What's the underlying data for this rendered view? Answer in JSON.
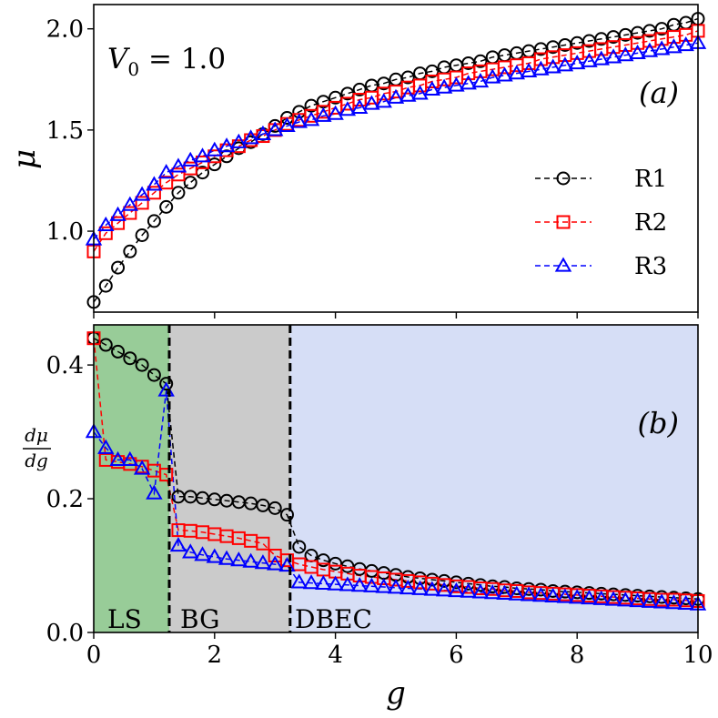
{
  "chart_data": [
    {
      "panel": "a",
      "type": "line",
      "panel_label": "(a)",
      "annotation": "V_0 = 1.0",
      "annotation_parts": {
        "main": "V",
        "sub": "0",
        "rest": " = 1.0"
      },
      "xlabel": "",
      "ylabel": "μ",
      "xlim": [
        0,
        10
      ],
      "ylim": [
        0.6,
        2.12
      ],
      "yticks": [
        "1.0",
        "1.5",
        "2.0"
      ],
      "ytick_values": [
        1.0,
        1.5,
        2.0
      ],
      "legend_position": "right",
      "series": [
        {
          "name": "R1",
          "color": "#000000",
          "marker": "circle",
          "x": [
            0.0,
            0.2,
            0.4,
            0.6,
            0.8,
            1.0,
            1.2,
            1.4,
            1.6,
            1.8,
            2.0,
            2.2,
            2.4,
            2.6,
            2.8,
            3.0,
            3.2,
            3.4,
            3.6,
            3.8,
            4.0,
            4.2,
            4.4,
            4.6,
            4.8,
            5.0,
            5.2,
            5.4,
            5.6,
            5.8,
            6.0,
            6.2,
            6.4,
            6.6,
            6.8,
            7.0,
            7.2,
            7.4,
            7.6,
            7.8,
            8.0,
            8.2,
            8.4,
            8.6,
            8.8,
            9.0,
            9.2,
            9.4,
            9.6,
            9.8,
            10.0
          ],
          "values": [
            0.65,
            0.73,
            0.82,
            0.9,
            0.98,
            1.05,
            1.12,
            1.19,
            1.24,
            1.29,
            1.33,
            1.37,
            1.41,
            1.44,
            1.48,
            1.52,
            1.56,
            1.59,
            1.62,
            1.64,
            1.66,
            1.68,
            1.7,
            1.72,
            1.73,
            1.75,
            1.76,
            1.78,
            1.79,
            1.81,
            1.82,
            1.83,
            1.84,
            1.86,
            1.87,
            1.88,
            1.89,
            1.9,
            1.91,
            1.92,
            1.93,
            1.94,
            1.95,
            1.96,
            1.97,
            1.98,
            1.99,
            2.0,
            2.02,
            2.03,
            2.05
          ]
        },
        {
          "name": "R2",
          "color": "#ff0000",
          "marker": "square",
          "x": [
            0.0,
            0.2,
            0.4,
            0.6,
            0.8,
            1.0,
            1.2,
            1.4,
            1.6,
            1.8,
            2.0,
            2.2,
            2.4,
            2.6,
            2.8,
            3.0,
            3.2,
            3.4,
            3.6,
            3.8,
            4.0,
            4.2,
            4.4,
            4.6,
            4.8,
            5.0,
            5.2,
            5.4,
            5.6,
            5.8,
            6.0,
            6.2,
            6.4,
            6.6,
            6.8,
            7.0,
            7.2,
            7.4,
            7.6,
            7.8,
            8.0,
            8.2,
            8.4,
            8.6,
            8.8,
            9.0,
            9.2,
            9.4,
            9.6,
            9.8,
            10.0
          ],
          "values": [
            0.9,
            0.99,
            1.04,
            1.09,
            1.14,
            1.19,
            1.24,
            1.28,
            1.31,
            1.34,
            1.37,
            1.4,
            1.42,
            1.45,
            1.47,
            1.5,
            1.53,
            1.55,
            1.57,
            1.59,
            1.61,
            1.63,
            1.65,
            1.66,
            1.68,
            1.69,
            1.71,
            1.72,
            1.74,
            1.75,
            1.76,
            1.78,
            1.79,
            1.8,
            1.81,
            1.82,
            1.83,
            1.85,
            1.86,
            1.87,
            1.88,
            1.89,
            1.9,
            1.91,
            1.92,
            1.93,
            1.94,
            1.95,
            1.96,
            1.97,
            1.99
          ]
        },
        {
          "name": "R3",
          "color": "#0000ff",
          "marker": "triangle",
          "x": [
            0.0,
            0.2,
            0.4,
            0.6,
            0.8,
            1.0,
            1.2,
            1.4,
            1.6,
            1.8,
            2.0,
            2.2,
            2.4,
            2.6,
            2.8,
            3.0,
            3.2,
            3.4,
            3.6,
            3.8,
            4.0,
            4.2,
            4.4,
            4.6,
            4.8,
            5.0,
            5.2,
            5.4,
            5.6,
            5.8,
            6.0,
            6.2,
            6.4,
            6.6,
            6.8,
            7.0,
            7.2,
            7.4,
            7.6,
            7.8,
            8.0,
            8.2,
            8.4,
            8.6,
            8.8,
            9.0,
            9.2,
            9.4,
            9.6,
            9.8,
            10.0
          ],
          "values": [
            0.96,
            1.03,
            1.08,
            1.13,
            1.18,
            1.23,
            1.29,
            1.32,
            1.35,
            1.37,
            1.4,
            1.42,
            1.44,
            1.46,
            1.48,
            1.5,
            1.52,
            1.54,
            1.55,
            1.57,
            1.58,
            1.6,
            1.61,
            1.63,
            1.64,
            1.66,
            1.67,
            1.68,
            1.7,
            1.71,
            1.72,
            1.73,
            1.74,
            1.76,
            1.77,
            1.78,
            1.79,
            1.8,
            1.81,
            1.82,
            1.83,
            1.84,
            1.85,
            1.86,
            1.87,
            1.88,
            1.89,
            1.9,
            1.91,
            1.92,
            1.93
          ]
        }
      ]
    },
    {
      "panel": "b",
      "type": "line",
      "panel_label": "(b)",
      "xlabel": "g",
      "ylabel": "dμ/dg",
      "ylabel_parts": {
        "num": "dμ",
        "den": "dg"
      },
      "xlim": [
        0,
        10
      ],
      "ylim": [
        0.0,
        0.46
      ],
      "xticks": [
        "0",
        "2",
        "4",
        "6",
        "8",
        "10"
      ],
      "xtick_values": [
        0,
        2,
        4,
        6,
        8,
        10
      ],
      "yticks": [
        "0.0",
        "0.2",
        "0.4"
      ],
      "ytick_values": [
        0.0,
        0.2,
        0.4
      ],
      "regions": [
        {
          "label": "LS",
          "x0": 0,
          "x1": 1.25,
          "color": "#98cc98"
        },
        {
          "label": "BG",
          "x0": 1.25,
          "x1": 3.25,
          "color": "#cbcbcb"
        },
        {
          "label": "DBEC",
          "x0": 3.25,
          "x1": 10,
          "color": "#d6def6"
        }
      ],
      "boundaries": [
        1.25,
        3.25
      ],
      "series": [
        {
          "name": "R1",
          "color": "#000000",
          "marker": "circle",
          "x": [
            0.0,
            0.2,
            0.4,
            0.6,
            0.8,
            1.0,
            1.2,
            1.4,
            1.6,
            1.8,
            2.0,
            2.2,
            2.4,
            2.6,
            2.8,
            3.0,
            3.2,
            3.4,
            3.6,
            3.8,
            4.0,
            4.2,
            4.4,
            4.6,
            4.8,
            5.0,
            5.2,
            5.4,
            5.6,
            5.8,
            6.0,
            6.2,
            6.4,
            6.6,
            6.8,
            7.0,
            7.2,
            7.4,
            7.6,
            7.8,
            8.0,
            8.2,
            8.4,
            8.6,
            8.8,
            9.0,
            9.2,
            9.4,
            9.6,
            9.8,
            10.0
          ],
          "values": [
            0.44,
            0.43,
            0.42,
            0.41,
            0.4,
            0.385,
            0.372,
            0.203,
            0.203,
            0.201,
            0.199,
            0.197,
            0.195,
            0.193,
            0.19,
            0.186,
            0.176,
            0.128,
            0.115,
            0.108,
            0.103,
            0.099,
            0.095,
            0.092,
            0.089,
            0.086,
            0.083,
            0.081,
            0.079,
            0.077,
            0.075,
            0.073,
            0.071,
            0.069,
            0.068,
            0.066,
            0.065,
            0.064,
            0.062,
            0.061,
            0.06,
            0.059,
            0.058,
            0.057,
            0.056,
            0.055,
            0.054,
            0.053,
            0.052,
            0.051,
            0.05
          ]
        },
        {
          "name": "R2",
          "color": "#ff0000",
          "marker": "square",
          "x": [
            0.0,
            0.2,
            0.4,
            0.6,
            0.8,
            1.0,
            1.2,
            1.4,
            1.6,
            1.8,
            2.0,
            2.2,
            2.4,
            2.6,
            2.8,
            3.0,
            3.2,
            3.4,
            3.6,
            3.8,
            4.0,
            4.2,
            4.4,
            4.6,
            4.8,
            5.0,
            5.2,
            5.4,
            5.6,
            5.8,
            6.0,
            6.2,
            6.4,
            6.6,
            6.8,
            7.0,
            7.2,
            7.4,
            7.6,
            7.8,
            8.0,
            8.2,
            8.4,
            8.6,
            8.8,
            9.0,
            9.2,
            9.4,
            9.6,
            9.8,
            10.0
          ],
          "values": [
            0.44,
            0.258,
            0.255,
            0.252,
            0.248,
            0.242,
            0.236,
            0.153,
            0.152,
            0.15,
            0.147,
            0.144,
            0.141,
            0.137,
            0.133,
            0.115,
            0.108,
            0.102,
            0.098,
            0.094,
            0.091,
            0.088,
            0.085,
            0.083,
            0.081,
            0.079,
            0.077,
            0.075,
            0.073,
            0.071,
            0.069,
            0.068,
            0.066,
            0.065,
            0.063,
            0.062,
            0.06,
            0.059,
            0.058,
            0.057,
            0.056,
            0.055,
            0.054,
            0.053,
            0.052,
            0.051,
            0.05,
            0.049,
            0.049,
            0.048,
            0.047
          ]
        },
        {
          "name": "R3",
          "color": "#0000ff",
          "marker": "triangle",
          "x": [
            0.0,
            0.2,
            0.4,
            0.6,
            0.8,
            1.0,
            1.2,
            1.4,
            1.6,
            1.8,
            2.0,
            2.2,
            2.4,
            2.6,
            2.8,
            3.0,
            3.2,
            3.4,
            3.6,
            3.8,
            4.0,
            4.2,
            4.4,
            4.6,
            4.8,
            5.0,
            5.2,
            5.4,
            5.6,
            5.8,
            6.0,
            6.2,
            6.4,
            6.6,
            6.8,
            7.0,
            7.2,
            7.4,
            7.6,
            7.8,
            8.0,
            8.2,
            8.4,
            8.6,
            8.8,
            9.0,
            9.2,
            9.4,
            9.6,
            9.8,
            10.0
          ],
          "values": [
            0.3,
            0.276,
            0.258,
            0.258,
            0.245,
            0.208,
            0.362,
            0.13,
            0.12,
            0.116,
            0.113,
            0.11,
            0.108,
            0.106,
            0.104,
            0.102,
            0.1,
            0.075,
            0.074,
            0.073,
            0.072,
            0.071,
            0.07,
            0.069,
            0.068,
            0.067,
            0.066,
            0.065,
            0.064,
            0.063,
            0.062,
            0.061,
            0.06,
            0.059,
            0.058,
            0.057,
            0.056,
            0.055,
            0.054,
            0.053,
            0.052,
            0.051,
            0.05,
            0.049,
            0.048,
            0.047,
            0.046,
            0.045,
            0.044,
            0.043,
            0.042
          ]
        }
      ]
    }
  ]
}
